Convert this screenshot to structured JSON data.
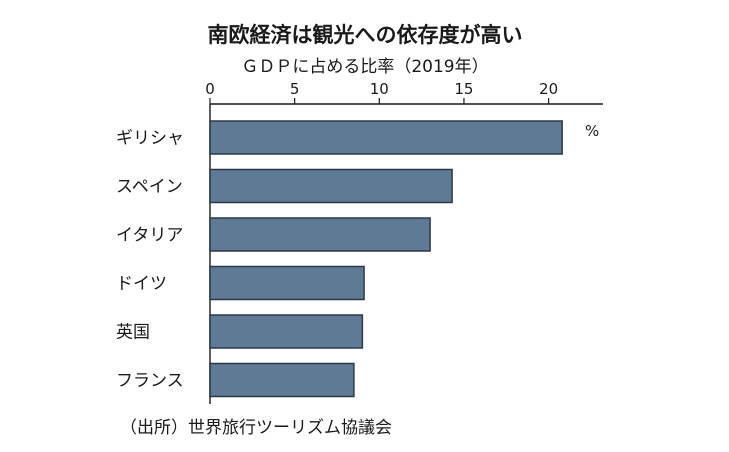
{
  "chart_data": {
    "type": "bar",
    "orientation": "horizontal",
    "title": "南欧経済は観光への依存度が高い",
    "subtitle": "ＧＤＰに占める比率（2019年）",
    "unit": "%",
    "categories": [
      "ギリシャ",
      "スペイン",
      "イタリア",
      "ドイツ",
      "英国",
      "フランス"
    ],
    "values": [
      20.8,
      14.3,
      13.0,
      9.1,
      9.0,
      8.5
    ],
    "ticks": [
      0,
      5,
      10,
      15,
      20
    ],
    "xlim": [
      0,
      23
    ],
    "grid": false,
    "bar_color": "#5f7a94",
    "source": "（出所）世界旅行ツーリズム協議会"
  }
}
